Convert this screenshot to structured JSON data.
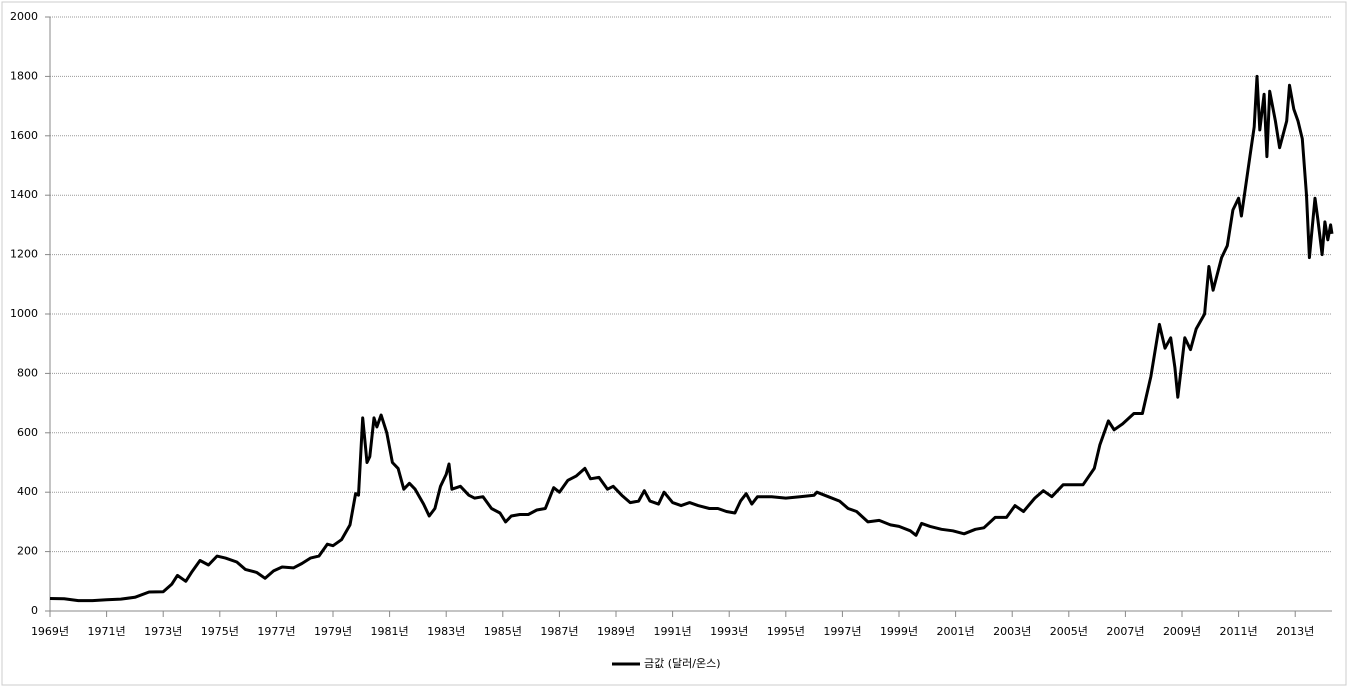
{
  "chart_data": {
    "type": "line",
    "x": [
      1969.0,
      1969.5,
      1970.0,
      1970.5,
      1971.0,
      1971.5,
      1972.0,
      1972.5,
      1973.0,
      1973.3,
      1973.5,
      1973.8,
      1974.0,
      1974.3,
      1974.6,
      1974.9,
      1975.2,
      1975.6,
      1975.9,
      1976.3,
      1976.6,
      1976.9,
      1977.2,
      1977.6,
      1977.9,
      1978.2,
      1978.5,
      1978.8,
      1979.0,
      1979.3,
      1979.6,
      1979.8,
      1979.9,
      1980.05,
      1980.2,
      1980.3,
      1980.45,
      1980.55,
      1980.7,
      1980.9,
      1981.1,
      1981.3,
      1981.5,
      1981.7,
      1981.9,
      1982.2,
      1982.4,
      1982.6,
      1982.8,
      1983.0,
      1983.1,
      1983.2,
      1983.5,
      1983.8,
      1984.0,
      1984.3,
      1984.6,
      1984.9,
      1985.1,
      1985.3,
      1985.6,
      1985.9,
      1986.2,
      1986.5,
      1986.8,
      1987.0,
      1987.3,
      1987.6,
      1987.9,
      1988.1,
      1988.4,
      1988.7,
      1988.9,
      1989.2,
      1989.5,
      1989.8,
      1990.0,
      1990.2,
      1990.5,
      1990.7,
      1991.0,
      1991.3,
      1991.6,
      1991.9,
      1992.3,
      1992.6,
      1992.9,
      1993.2,
      1993.4,
      1993.6,
      1993.8,
      1994.0,
      1994.5,
      1995.0,
      1995.5,
      1996.0,
      1996.1,
      1996.5,
      1996.9,
      1997.2,
      1997.5,
      1997.9,
      1998.3,
      1998.7,
      1999.0,
      1999.4,
      1999.6,
      1999.8,
      2000.1,
      2000.5,
      2000.9,
      2001.3,
      2001.7,
      2002.0,
      2002.4,
      2002.8,
      2003.1,
      2003.4,
      2003.8,
      2004.1,
      2004.4,
      2004.8,
      2005.1,
      2005.5,
      2005.9,
      2006.1,
      2006.4,
      2006.6,
      2006.9,
      2007.3,
      2007.6,
      2007.9,
      2008.2,
      2008.4,
      2008.6,
      2008.75,
      2008.85,
      2009.1,
      2009.3,
      2009.5,
      2009.8,
      2009.95,
      2010.1,
      2010.4,
      2010.6,
      2010.8,
      2011.0,
      2011.1,
      2011.4,
      2011.55,
      2011.65,
      2011.75,
      2011.9,
      2012.0,
      2012.1,
      2012.3,
      2012.45,
      2012.7,
      2012.8,
      2012.95,
      2013.1,
      2013.25,
      2013.4,
      2013.5,
      2013.7,
      2013.8,
      2013.95,
      2014.05,
      2014.15,
      2014.25,
      2014.3
    ],
    "series": [
      {
        "name": "금값 (달러/온스)",
        "color": "#000000",
        "values": [
          42,
          41,
          35,
          35,
          38,
          40,
          46,
          64,
          65,
          90,
          120,
          100,
          130,
          170,
          155,
          185,
          178,
          165,
          140,
          130,
          110,
          135,
          148,
          145,
          160,
          178,
          185,
          225,
          220,
          240,
          290,
          395,
          390,
          650,
          500,
          520,
          650,
          620,
          660,
          600,
          500,
          480,
          410,
          430,
          410,
          360,
          320,
          345,
          420,
          460,
          495,
          410,
          420,
          390,
          380,
          385,
          345,
          330,
          300,
          320,
          325,
          325,
          340,
          345,
          415,
          400,
          440,
          455,
          480,
          445,
          450,
          410,
          420,
          390,
          365,
          370,
          405,
          370,
          360,
          400,
          365,
          355,
          365,
          355,
          345,
          345,
          335,
          330,
          370,
          395,
          360,
          385,
          385,
          380,
          385,
          390,
          400,
          385,
          370,
          345,
          335,
          300,
          305,
          290,
          285,
          270,
          255,
          295,
          285,
          275,
          270,
          260,
          275,
          280,
          315,
          315,
          355,
          335,
          380,
          405,
          385,
          425,
          425,
          425,
          480,
          560,
          640,
          610,
          630,
          665,
          665,
          790,
          965,
          885,
          920,
          820,
          720,
          920,
          880,
          950,
          1000,
          1160,
          1080,
          1190,
          1230,
          1350,
          1390,
          1330,
          1530,
          1630,
          1800,
          1620,
          1740,
          1530,
          1750,
          1650,
          1560,
          1650,
          1770,
          1690,
          1650,
          1590,
          1400,
          1190,
          1390,
          1320,
          1200,
          1310,
          1250,
          1300,
          1270
        ]
      }
    ],
    "xlim": [
      1969,
      2014.3
    ],
    "xticks": [
      {
        "value": 1969,
        "label": "1969년"
      },
      {
        "value": 1971,
        "label": "1971년"
      },
      {
        "value": 1973,
        "label": "1973년"
      },
      {
        "value": 1975,
        "label": "1975년"
      },
      {
        "value": 1977,
        "label": "1977년"
      },
      {
        "value": 1979,
        "label": "1979년"
      },
      {
        "value": 1981,
        "label": "1981년"
      },
      {
        "value": 1983,
        "label": "1983년"
      },
      {
        "value": 1985,
        "label": "1985년"
      },
      {
        "value": 1987,
        "label": "1987년"
      },
      {
        "value": 1989,
        "label": "1989년"
      },
      {
        "value": 1991,
        "label": "1991년"
      },
      {
        "value": 1993,
        "label": "1993년"
      },
      {
        "value": 1995,
        "label": "1995년"
      },
      {
        "value": 1997,
        "label": "1997년"
      },
      {
        "value": 1999,
        "label": "1999년"
      },
      {
        "value": 2001,
        "label": "2001년"
      },
      {
        "value": 2003,
        "label": "2003년"
      },
      {
        "value": 2005,
        "label": "2005년"
      },
      {
        "value": 2007,
        "label": "2007년"
      },
      {
        "value": 2009,
        "label": "2009년"
      },
      {
        "value": 2011,
        "label": "2011년"
      },
      {
        "value": 2013,
        "label": "2013년"
      }
    ],
    "ylim": [
      0,
      2000
    ],
    "yticks": [
      0,
      200,
      400,
      600,
      800,
      1000,
      1200,
      1400,
      1600,
      1800,
      2000
    ],
    "grid": true,
    "legend": "bottom"
  }
}
